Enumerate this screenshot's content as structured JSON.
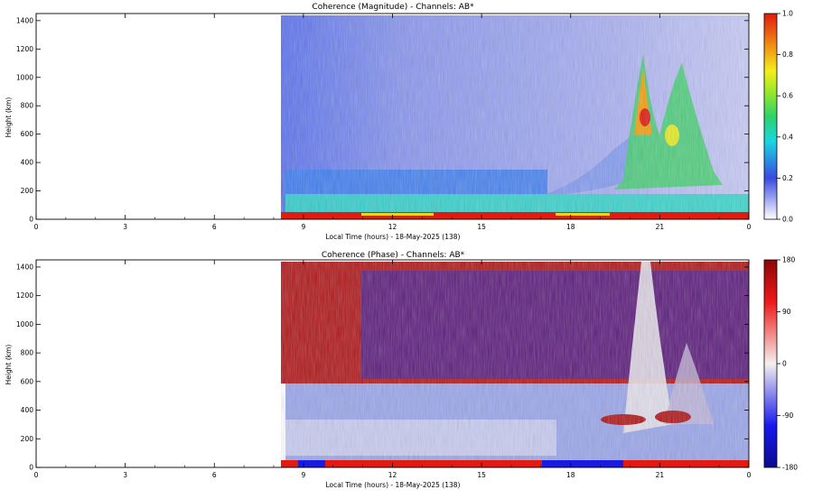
{
  "chart_data": [
    {
      "type": "heatmap",
      "title": "Coherence (Magnitude) - Channels: AB*",
      "xlabel": "Local Time (hours) - 18-May-2025 (138)",
      "ylabel": "Height (km)",
      "xlim": [
        0,
        24
      ],
      "ylim": [
        0,
        1450
      ],
      "x_ticks": [
        "0",
        "3",
        "6",
        "9",
        "12",
        "15",
        "18",
        "21",
        "0"
      ],
      "y_ticks": [
        "0",
        "200",
        "400",
        "600",
        "800",
        "1000",
        "1200",
        "1400"
      ],
      "colorbar": {
        "min": 0.0,
        "max": 1.0,
        "ticks": [
          "0.0",
          "0.2",
          "0.4",
          "0.6",
          "0.8",
          "1.0"
        ],
        "colormap": "white-blue-cyan-green-yellow-red"
      },
      "data_start_hour": 8.2,
      "features": [
        {
          "name": "background",
          "value": 0.2,
          "height_range": [
            0,
            1450
          ]
        },
        {
          "name": "low-layer",
          "value": 0.25,
          "height_range": [
            180,
            330
          ],
          "time_range": [
            8.2,
            17.0
          ]
        },
        {
          "name": "bottom-band",
          "value": 0.4,
          "height_range": [
            40,
            150
          ],
          "time_range": [
            8.2,
            24
          ]
        },
        {
          "name": "ground-return",
          "value": 1.0,
          "height_range": [
            0,
            40
          ],
          "time_range": [
            8.2,
            24
          ]
        },
        {
          "name": "evening-enhancement",
          "value": 0.7,
          "height_range": [
            200,
            1100
          ],
          "time_range": [
            19.5,
            22.5
          ]
        }
      ]
    },
    {
      "type": "heatmap",
      "title": "Coherence (Phase) - Channels: AB*",
      "xlabel": "Local Time (hours) - 18-May-2025 (138)",
      "ylabel": "Height (km)",
      "xlim": [
        0,
        24
      ],
      "ylim": [
        0,
        1450
      ],
      "x_ticks": [
        "0",
        "3",
        "6",
        "9",
        "12",
        "15",
        "18",
        "21",
        "0"
      ],
      "y_ticks": [
        "0",
        "200",
        "400",
        "600",
        "800",
        "1000",
        "1200",
        "1400"
      ],
      "colorbar": {
        "min": -180,
        "max": 180,
        "ticks": [
          "-180",
          "-90",
          "0",
          "90",
          "180"
        ],
        "colormap": "blue-white-red"
      },
      "data_start_hour": 8.2,
      "features": [
        {
          "name": "upper-random-phase",
          "value": 180,
          "height_range": [
            450,
            1450
          ]
        },
        {
          "name": "lower-layer-phase",
          "value": -40,
          "height_range": [
            50,
            450
          ],
          "time_range": [
            8.2,
            17.0
          ]
        },
        {
          "name": "evening-plume",
          "value": 10,
          "height_range": [
            200,
            1450
          ],
          "time_range": [
            20.0,
            22.5
          ]
        },
        {
          "name": "ground-return",
          "value": 180,
          "height_range": [
            0,
            50
          ],
          "time_range": [
            8.2,
            24
          ]
        }
      ]
    }
  ]
}
